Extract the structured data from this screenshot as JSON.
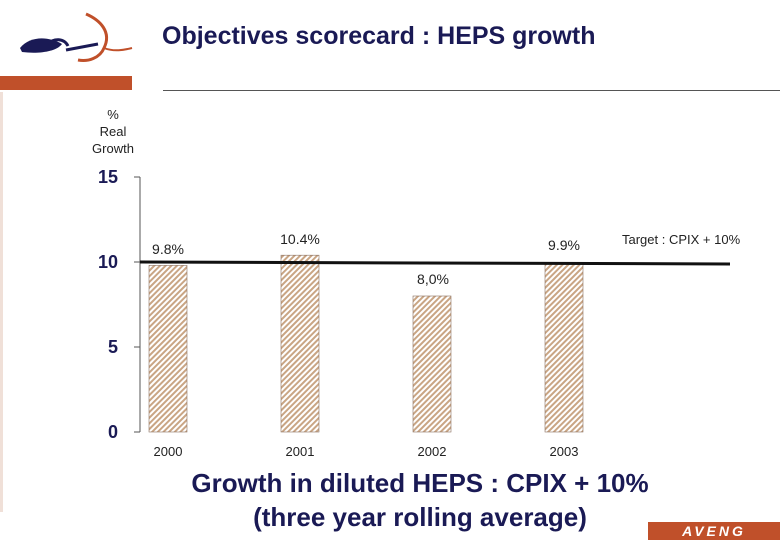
{
  "header": {
    "title": "Objectives scorecard : HEPS growth"
  },
  "y_axis_label": [
    "%",
    "Real",
    "Growth"
  ],
  "chart_data": {
    "type": "bar",
    "categories": [
      "2000",
      "2001",
      "2002",
      "2003"
    ],
    "values": [
      9.8,
      10.4,
      8.0,
      9.9
    ],
    "data_labels": [
      "9.8%",
      "10.4%",
      "8,0%",
      "9.9%"
    ],
    "ylim": [
      0,
      15
    ],
    "yticks": [
      0,
      5,
      10,
      15
    ],
    "ytick_labels": [
      "0",
      "5",
      "10",
      "15"
    ],
    "ylabel": "% Real Growth",
    "grid": false,
    "bar_color": "#c9a584",
    "target": {
      "value": 10,
      "label": "Target : CPIX + 10%"
    }
  },
  "footer": {
    "line1": "Growth in diluted HEPS : CPIX + 10%",
    "line2": "(three year rolling average)"
  },
  "brand": {
    "name": "AVENG",
    "color": "#c0502a"
  }
}
